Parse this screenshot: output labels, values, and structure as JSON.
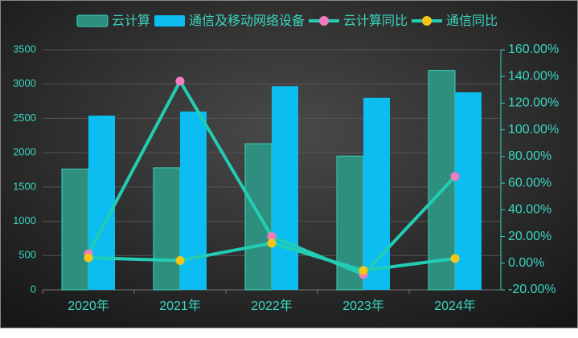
{
  "chart_data": {
    "type": "bar-line",
    "categories": [
      "2020年",
      "2021年",
      "2022年",
      "2023年",
      "2024年"
    ],
    "series": [
      {
        "name": "云计算",
        "type": "bar",
        "color": "#2e8f7f",
        "border_color": "#3ad6c0",
        "values": [
          1760,
          1780,
          2130,
          1950,
          3200
        ]
      },
      {
        "name": "通信及移动网络设备",
        "type": "bar",
        "color": "#0bbdf0",
        "values": [
          2540,
          2600,
          2970,
          2800,
          2880
        ]
      },
      {
        "name": "云计算同比",
        "type": "line",
        "axis": "y2",
        "color": "#22cdb4",
        "marker_color": "#f07cbf",
        "values": [
          7,
          136.5,
          20,
          -8.5,
          65
        ]
      },
      {
        "name": "通信同比",
        "type": "line",
        "axis": "y2",
        "color": "#22cdb4",
        "marker_color": "#f5c518",
        "values": [
          4,
          2,
          15,
          -5.5,
          3.5
        ]
      }
    ],
    "ylim": [
      0,
      3500
    ],
    "yticks": [
      0,
      500,
      1000,
      1500,
      2000,
      2500,
      3000,
      3500
    ],
    "y2lim": [
      -20,
      160
    ],
    "y2ticks": [
      {
        "value": -20,
        "label": "-20.00%"
      },
      {
        "value": 0,
        "label": "0.00%"
      },
      {
        "value": 20,
        "label": "20.00%"
      },
      {
        "value": 40,
        "label": "40.00%"
      },
      {
        "value": 60,
        "label": "60.00%"
      },
      {
        "value": 80,
        "label": "80.00%"
      },
      {
        "value": 100,
        "label": "100.00%"
      },
      {
        "value": 120,
        "label": "120.00%"
      },
      {
        "value": 140,
        "label": "140.00%"
      },
      {
        "value": 160,
        "label": "160.00%"
      }
    ],
    "grid": true
  }
}
